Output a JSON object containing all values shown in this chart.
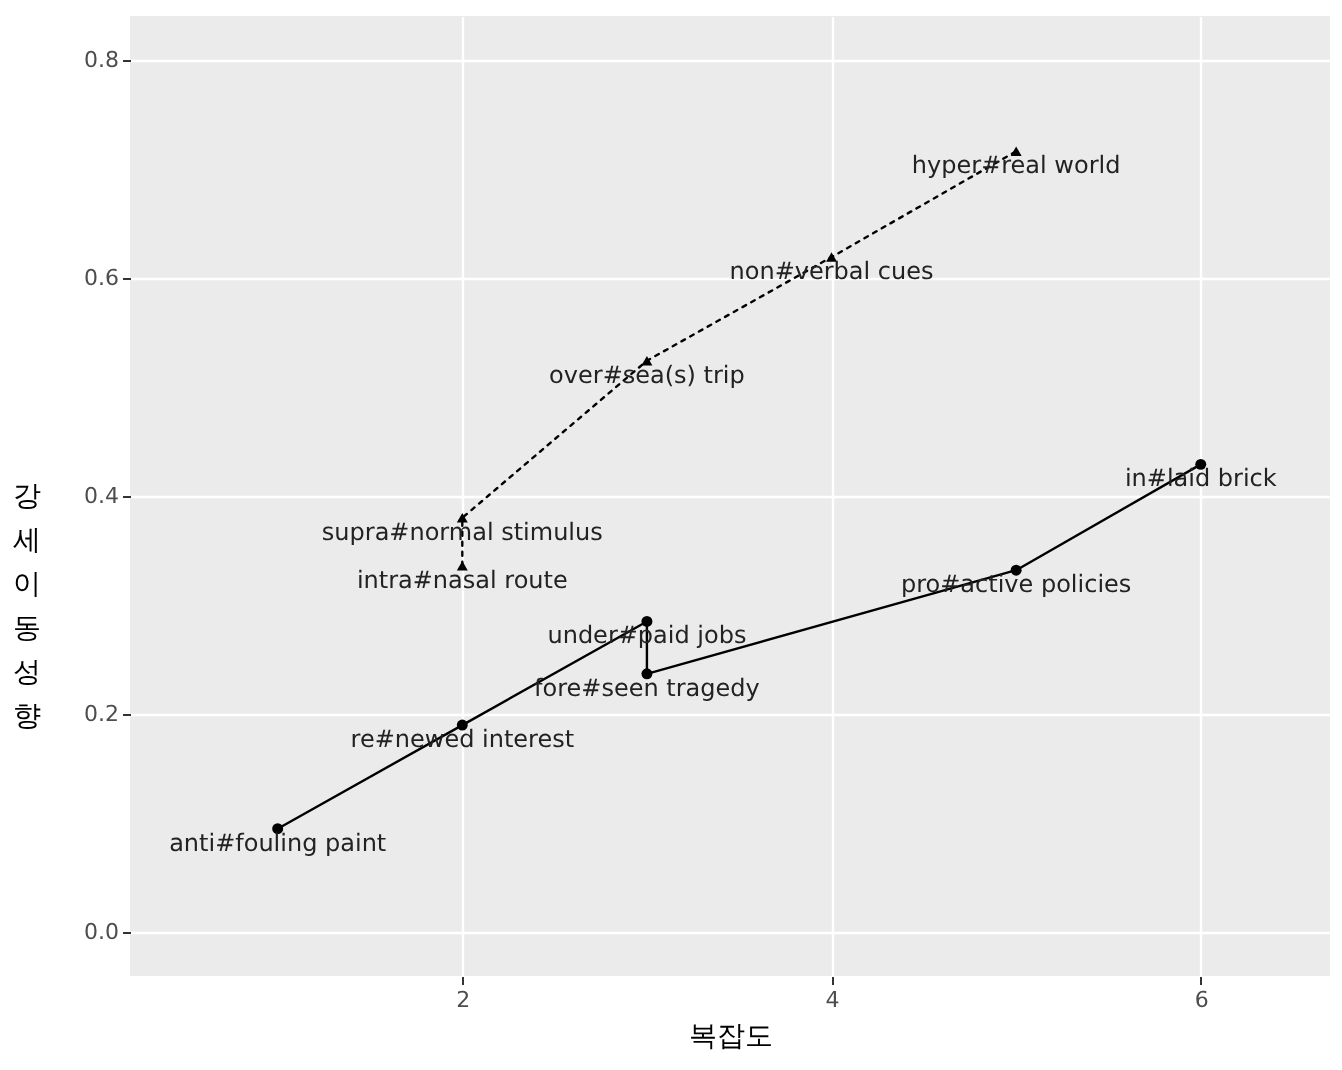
{
  "chart_data": {
    "type": "line",
    "xlabel": "복잡도",
    "ylabel": "강세이동성향",
    "xlim": [
      0.2,
      6.7
    ],
    "ylim": [
      -0.04,
      0.84
    ],
    "xticks": [
      2,
      4,
      6
    ],
    "yticks": [
      {
        "value": 0,
        "label": "0.0"
      },
      0.2,
      0.4,
      0.6,
      0.8
    ],
    "grid": true,
    "series": [
      {
        "color": "#000000",
        "marker": "circle",
        "line_style": "solid",
        "x": [
          1,
          2,
          3,
          3,
          5,
          6
        ],
        "values": [
          0.095,
          0.19,
          0.285,
          0.237,
          0.332,
          0.429
        ]
      },
      {
        "color": "#000000",
        "marker": "triangle",
        "line_style": "dotted",
        "x": [
          2,
          2,
          3,
          4,
          5
        ],
        "values": [
          0.336,
          0.38,
          0.524,
          0.619,
          0.716
        ]
      }
    ],
    "annotations": [
      {
        "text": "anti#fouling paint",
        "x": 1,
        "y": 0.095
      },
      {
        "text": "re#newed interest",
        "x": 2,
        "y": 0.19
      },
      {
        "text": "under#paid jobs",
        "x": 3,
        "y": 0.285
      },
      {
        "text": "fore#seen tragedy",
        "x": 3,
        "y": 0.237
      },
      {
        "text": "pro#active policies",
        "x": 5,
        "y": 0.332
      },
      {
        "text": "in#laid brick",
        "x": 6,
        "y": 0.429
      },
      {
        "text": "intra#nasal route",
        "x": 2,
        "y": 0.336
      },
      {
        "text": "supra#normal stimulus",
        "x": 2,
        "y": 0.38
      },
      {
        "text": "over#sea(s) trip",
        "x": 3,
        "y": 0.524
      },
      {
        "text": "non#verbal cues",
        "x": 4,
        "y": 0.619
      },
      {
        "text": "hyper#real world",
        "x": 5,
        "y": 0.716
      }
    ]
  }
}
